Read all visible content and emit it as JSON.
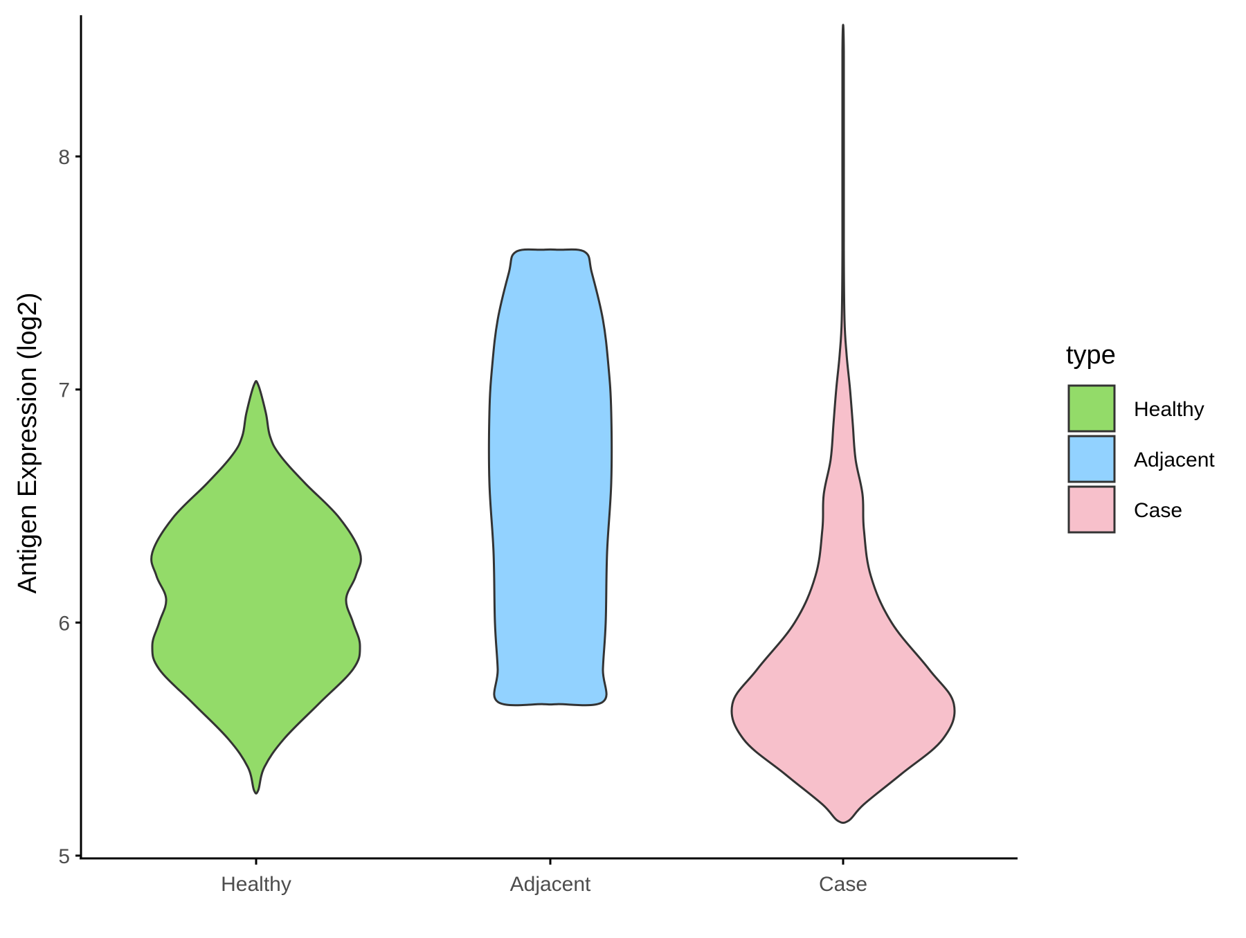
{
  "chart_data": {
    "type": "violin",
    "ylabel": "Antigen Expression (log2)",
    "xlabel": "",
    "title": "",
    "ylim": [
      5,
      8.5
    ],
    "y_ticks": [
      5,
      6,
      7,
      8
    ],
    "categories": [
      "Healthy",
      "Adjacent",
      "Case"
    ],
    "legend": {
      "title": "type",
      "position": "right",
      "entries": [
        "Healthy",
        "Adjacent",
        "Case"
      ]
    },
    "colors": {
      "Healthy": "#93DB69",
      "Adjacent": "#92D2FF",
      "Case": "#F7C0CB",
      "outline": "#333333",
      "axis": "#000000"
    },
    "series": [
      {
        "category": "Healthy",
        "min": 5.28,
        "max": 7.02,
        "density_profile": [
          [
            5.28,
            0.015
          ],
          [
            5.38,
            0.06
          ],
          [
            5.5,
            0.2
          ],
          [
            5.65,
            0.45
          ],
          [
            5.8,
            0.7
          ],
          [
            5.9,
            0.75
          ],
          [
            6.0,
            0.7
          ],
          [
            6.1,
            0.65
          ],
          [
            6.2,
            0.72
          ],
          [
            6.3,
            0.75
          ],
          [
            6.45,
            0.6
          ],
          [
            6.6,
            0.35
          ],
          [
            6.72,
            0.17
          ],
          [
            6.8,
            0.1
          ],
          [
            6.9,
            0.07
          ],
          [
            7.02,
            0.015
          ]
        ]
      },
      {
        "category": "Adjacent",
        "min": 5.65,
        "max": 7.6,
        "density_profile": [
          [
            5.65,
            0.05
          ],
          [
            5.66,
            0.38
          ],
          [
            5.8,
            0.38
          ],
          [
            6.0,
            0.4
          ],
          [
            6.3,
            0.41
          ],
          [
            6.6,
            0.44
          ],
          [
            6.9,
            0.44
          ],
          [
            7.1,
            0.42
          ],
          [
            7.3,
            0.38
          ],
          [
            7.5,
            0.3
          ],
          [
            7.59,
            0.25
          ],
          [
            7.6,
            0.05
          ]
        ]
      },
      {
        "category": "Case",
        "min": 5.15,
        "max": 8.45,
        "density_profile": [
          [
            5.15,
            0.04
          ],
          [
            5.22,
            0.15
          ],
          [
            5.35,
            0.42
          ],
          [
            5.5,
            0.72
          ],
          [
            5.65,
            0.8
          ],
          [
            5.8,
            0.62
          ],
          [
            6.0,
            0.35
          ],
          [
            6.2,
            0.2
          ],
          [
            6.4,
            0.15
          ],
          [
            6.55,
            0.14
          ],
          [
            6.7,
            0.09
          ],
          [
            6.85,
            0.07
          ],
          [
            7.0,
            0.05
          ],
          [
            7.15,
            0.025
          ],
          [
            7.3,
            0.01
          ],
          [
            7.6,
            0.005
          ],
          [
            8.45,
            0.005
          ]
        ]
      }
    ]
  }
}
